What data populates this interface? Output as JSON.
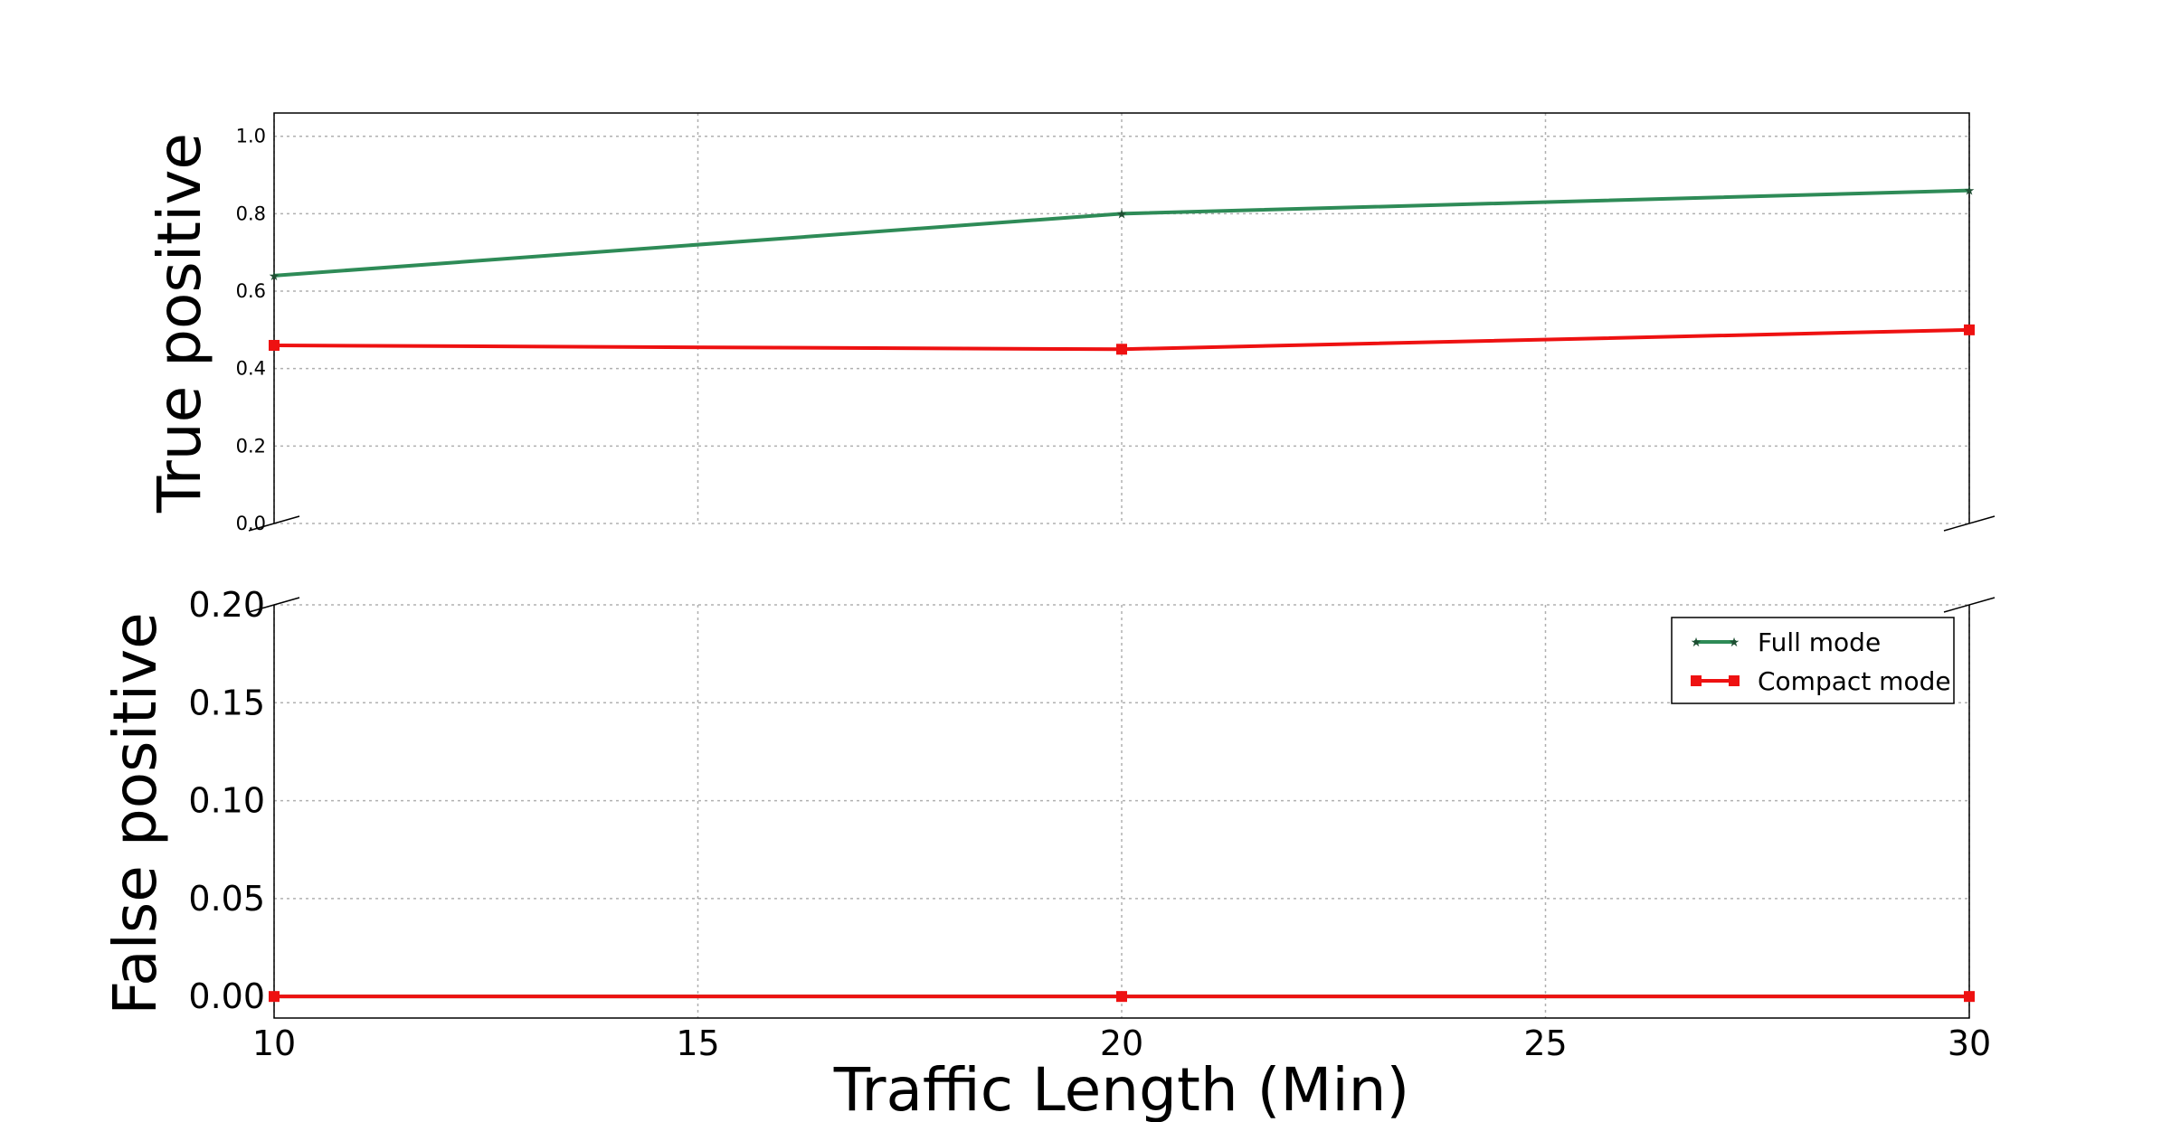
{
  "chart_data": {
    "type": "line",
    "xlabel": "Traffic Length (Min)",
    "x": [
      10,
      20,
      30
    ],
    "xlim": [
      10,
      30
    ],
    "xticks": [
      "10",
      "15",
      "20",
      "25",
      "30"
    ],
    "grid": true,
    "legend_position": "top-right",
    "legend": [
      "Full mode",
      "Compact mode"
    ],
    "colors": {
      "full": "#2e8b57",
      "compact": "#ee1111"
    },
    "panels": [
      {
        "ylabel": "True positive",
        "ylim": [
          0,
          1.06
        ],
        "yticks": [
          "0.0",
          "0.2",
          "0.4",
          "0.6",
          "0.8",
          "1.0"
        ],
        "series": [
          {
            "name": "Full mode",
            "marker": "star",
            "values": [
              0.64,
              0.8,
              0.86
            ]
          },
          {
            "name": "Compact mode",
            "marker": "square",
            "values": [
              0.46,
              0.45,
              0.5
            ]
          }
        ]
      },
      {
        "ylabel": "False positive",
        "ylim": [
          -0.011,
          0.2
        ],
        "yticks": [
          "0.00",
          "0.05",
          "0.10",
          "0.15",
          "0.20"
        ],
        "series": [
          {
            "name": "Full mode",
            "marker": "star",
            "values": [
              0.0,
              0.0,
              0.0
            ]
          },
          {
            "name": "Compact mode",
            "marker": "square",
            "values": [
              0.0,
              0.0,
              0.0
            ]
          }
        ]
      }
    ]
  }
}
